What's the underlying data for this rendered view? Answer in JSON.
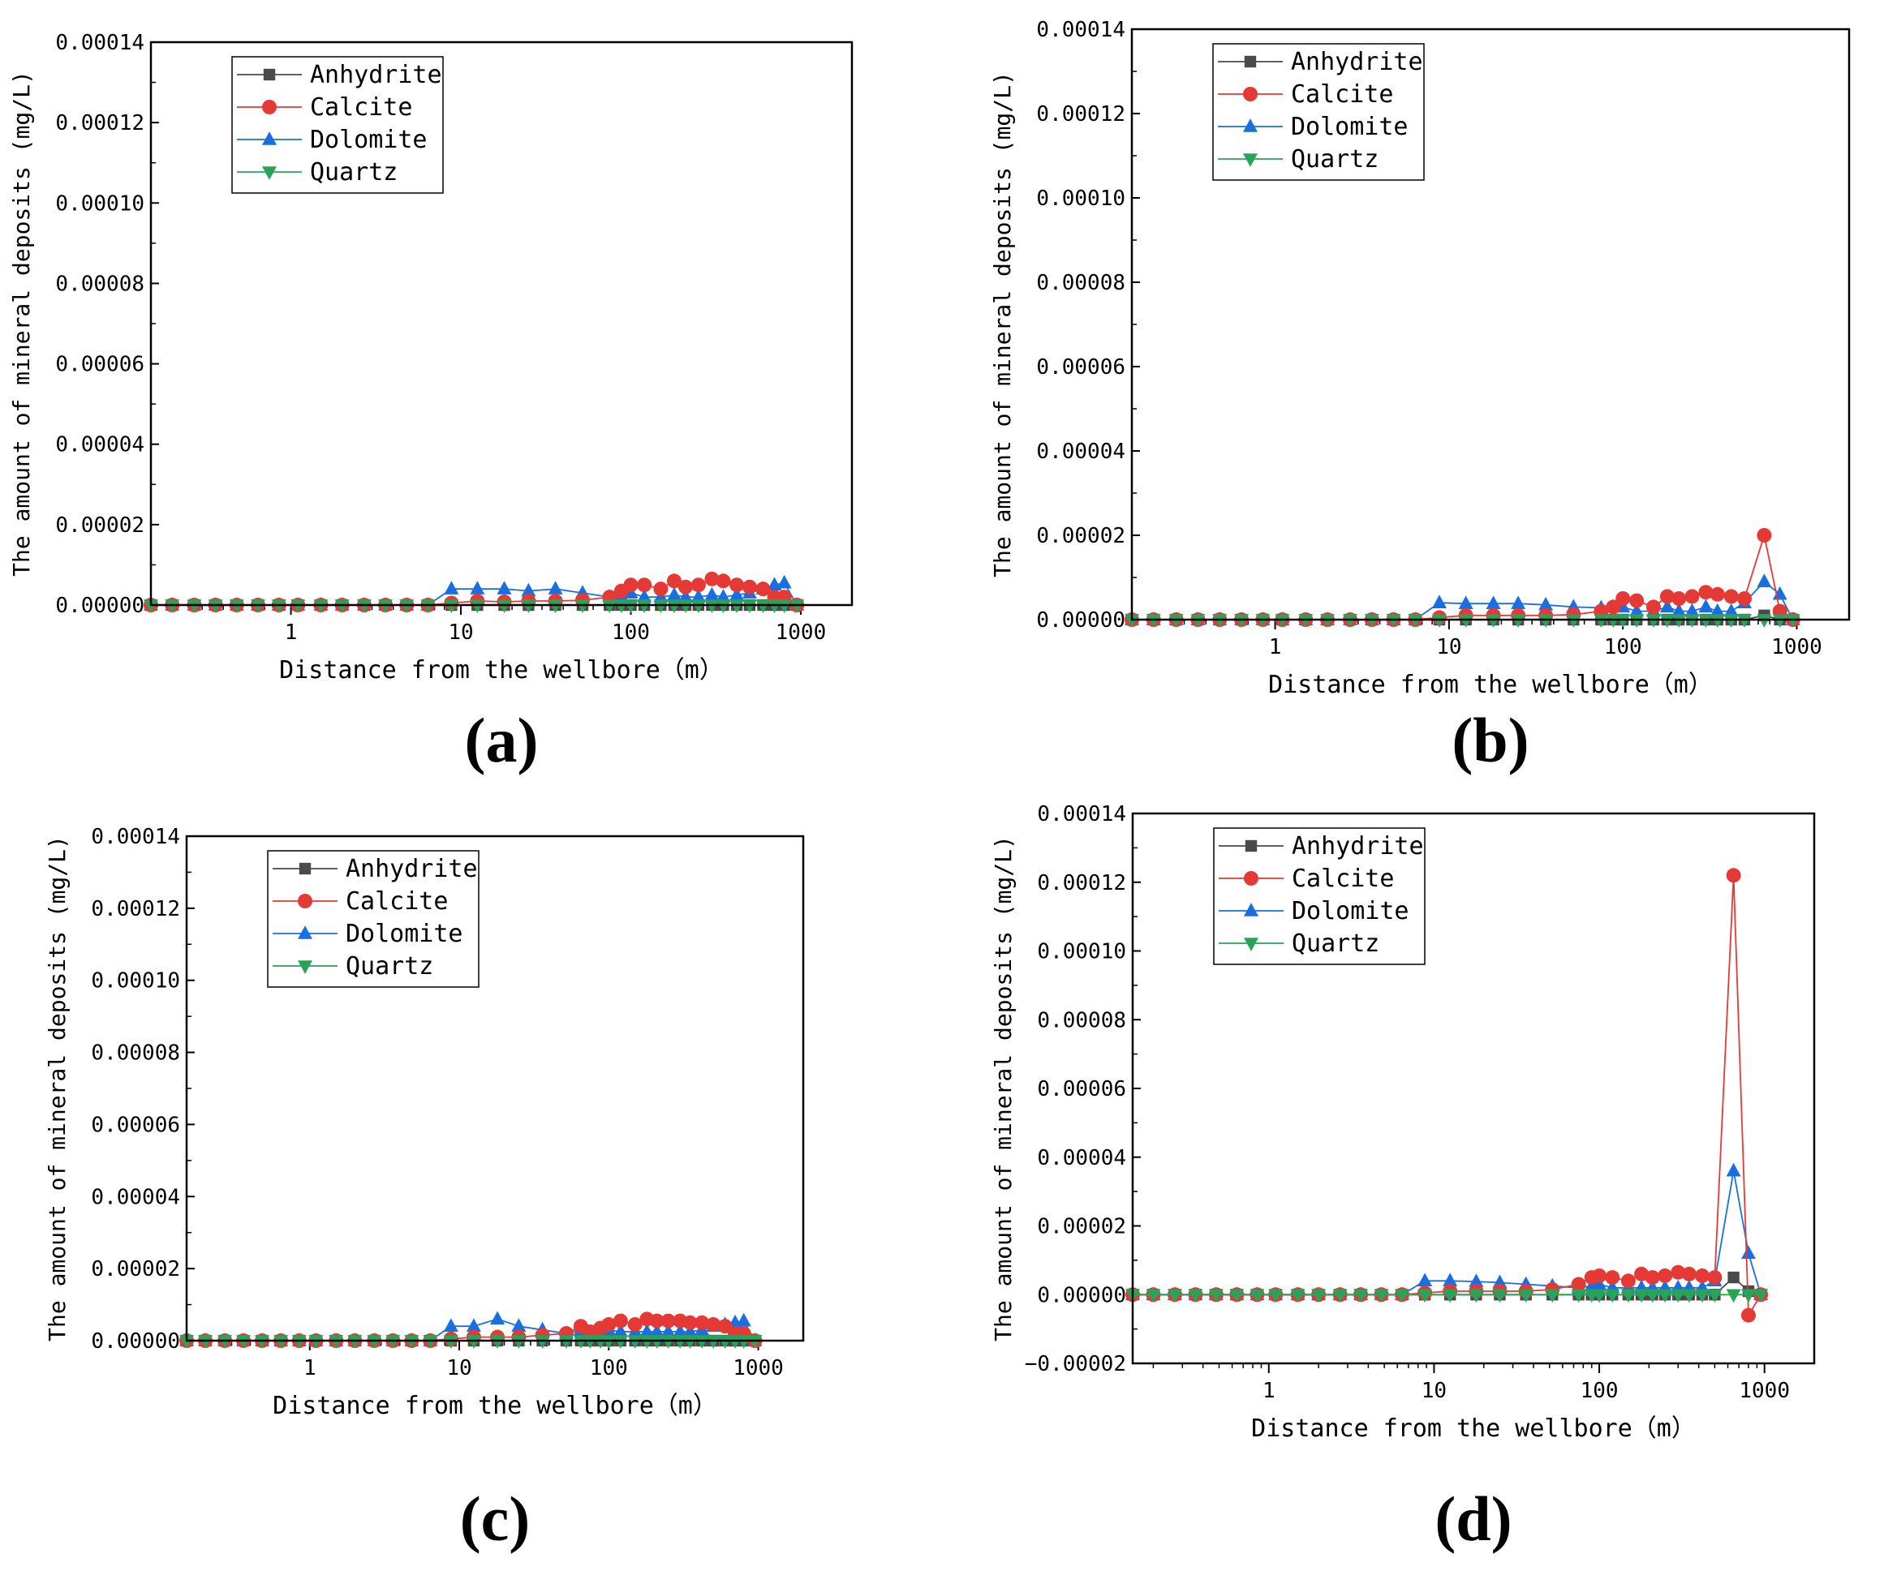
{
  "colors": {
    "Anhydrite": "#4a4a4a",
    "Calcite": "#e53935",
    "Dolomite": "#1a6fe0",
    "Quartz": "#2aa35a",
    "axis": "#000000"
  },
  "chart_data": [
    {
      "type": "line",
      "panel_label": "(a)",
      "xlabel": "Distance from the wellbore（m）",
      "ylabel": "The amount of mineral deposits (mg/L)",
      "xscale": "log",
      "xlim": [
        0.15,
        2000
      ],
      "ylim": [
        0,
        0.00014
      ],
      "xticks": [
        1,
        10,
        100,
        1000
      ],
      "xtick_labels": [
        "1",
        "10",
        "100",
        "1000"
      ],
      "yticks": [
        0,
        2e-05,
        4e-05,
        6e-05,
        8e-05,
        0.0001,
        0.00012,
        0.00014
      ],
      "ytick_labels": [
        "0.00000",
        "0.00002",
        "0.00004",
        "0.00006",
        "0.00008",
        "0.00010",
        "0.00012",
        "0.00014"
      ],
      "legend": [
        "Anhydrite",
        "Calcite",
        "Dolomite",
        "Quartz"
      ],
      "legend_position": "top-left",
      "x": [
        0.15,
        0.2,
        0.27,
        0.36,
        0.48,
        0.64,
        0.85,
        1.1,
        1.5,
        2.0,
        2.7,
        3.6,
        4.8,
        6.4,
        8.8,
        12.5,
        18,
        25,
        36,
        52,
        75,
        88,
        100,
        120,
        150,
        180,
        210,
        250,
        300,
        350,
        420,
        500,
        600,
        700,
        800,
        950
      ],
      "series": [
        {
          "name": "Anhydrite",
          "values": [
            0,
            0,
            0,
            0,
            0,
            0,
            0,
            0,
            0,
            0,
            0,
            0,
            0,
            0,
            0,
            0,
            0,
            0,
            0,
            0,
            0,
            0,
            0,
            0,
            0,
            0,
            0,
            0,
            0,
            0,
            0,
            0,
            0,
            0,
            0,
            0
          ]
        },
        {
          "name": "Calcite",
          "values": [
            0,
            0,
            0,
            0,
            0,
            0,
            0,
            0,
            0,
            0,
            0,
            0,
            0,
            0,
            5e-07,
            1e-06,
            8e-07,
            1e-06,
            1e-06,
            1.2e-06,
            2e-06,
            3.5e-06,
            5e-06,
            5e-06,
            4e-06,
            6e-06,
            4.5e-06,
            5e-06,
            6.5e-06,
            6e-06,
            5e-06,
            4.5e-06,
            4e-06,
            2e-06,
            2e-06,
            0
          ]
        },
        {
          "name": "Dolomite",
          "values": [
            0,
            0,
            0,
            0,
            0,
            0,
            0,
            0,
            0,
            0,
            0,
            0,
            0,
            0,
            4e-06,
            4e-06,
            4e-06,
            3.5e-06,
            4e-06,
            3e-06,
            2e-06,
            2e-06,
            3e-06,
            2e-06,
            2e-06,
            2.5e-06,
            2e-06,
            2e-06,
            2.5e-06,
            2e-06,
            2.5e-06,
            3e-06,
            4e-06,
            5e-06,
            5.5e-06,
            0
          ]
        },
        {
          "name": "Quartz",
          "values": [
            0,
            0,
            0,
            0,
            0,
            0,
            0,
            0,
            0,
            0,
            0,
            0,
            0,
            0,
            0,
            0,
            0,
            0,
            0,
            0,
            0,
            0,
            0,
            0,
            0,
            0,
            0,
            0,
            0,
            0,
            0,
            0,
            0,
            0,
            0,
            0
          ]
        }
      ]
    },
    {
      "type": "line",
      "panel_label": "(b)",
      "xlabel": "Distance from the wellbore（m）",
      "ylabel": "The amount of mineral deposits (mg/L)",
      "xscale": "log",
      "xlim": [
        0.15,
        2000
      ],
      "ylim": [
        0,
        0.00014
      ],
      "xticks": [
        1,
        10,
        100,
        1000
      ],
      "xtick_labels": [
        "1",
        "10",
        "100",
        "1000"
      ],
      "yticks": [
        0,
        2e-05,
        4e-05,
        6e-05,
        8e-05,
        0.0001,
        0.00012,
        0.00014
      ],
      "ytick_labels": [
        "0.00000",
        "0.00002",
        "0.00004",
        "0.00006",
        "0.00008",
        "0.00010",
        "0.00012",
        "0.00014"
      ],
      "legend": [
        "Anhydrite",
        "Calcite",
        "Dolomite",
        "Quartz"
      ],
      "legend_position": "top-left",
      "x": [
        0.15,
        0.2,
        0.27,
        0.36,
        0.48,
        0.64,
        0.85,
        1.1,
        1.5,
        2.0,
        2.7,
        3.6,
        4.8,
        6.4,
        8.8,
        12.5,
        18,
        25,
        36,
        52,
        75,
        88,
        100,
        120,
        150,
        180,
        210,
        250,
        300,
        350,
        420,
        500,
        650,
        800,
        950
      ],
      "series": [
        {
          "name": "Anhydrite",
          "values": [
            0,
            0,
            0,
            0,
            0,
            0,
            0,
            0,
            0,
            0,
            0,
            0,
            0,
            0,
            0,
            0,
            0,
            0,
            0,
            0,
            0,
            0,
            0,
            0,
            0,
            0,
            0,
            0,
            0,
            0,
            0,
            0,
            1e-06,
            0,
            0
          ]
        },
        {
          "name": "Calcite",
          "values": [
            0,
            0,
            0,
            0,
            0,
            0,
            0,
            0,
            0,
            0,
            0,
            0,
            0,
            0,
            5e-07,
            1e-06,
            1e-06,
            1e-06,
            1e-06,
            1.2e-06,
            2e-06,
            3e-06,
            5e-06,
            4.5e-06,
            3e-06,
            5.5e-06,
            5e-06,
            5.5e-06,
            6.5e-06,
            6e-06,
            5.5e-06,
            5e-06,
            2e-05,
            2e-06,
            0
          ]
        },
        {
          "name": "Dolomite",
          "values": [
            0,
            0,
            0,
            0,
            0,
            0,
            0,
            0,
            0,
            0,
            0,
            0,
            0,
            0,
            4e-06,
            3.8e-06,
            3.8e-06,
            3.8e-06,
            3.5e-06,
            3e-06,
            2.8e-06,
            3e-06,
            3e-06,
            2e-06,
            2e-06,
            3e-06,
            2e-06,
            2e-06,
            3e-06,
            2e-06,
            2e-06,
            4e-06,
            9e-06,
            6e-06,
            0
          ]
        },
        {
          "name": "Quartz",
          "values": [
            0,
            0,
            0,
            0,
            0,
            0,
            0,
            0,
            0,
            0,
            0,
            0,
            0,
            0,
            0,
            0,
            0,
            0,
            0,
            0,
            0,
            0,
            0,
            0,
            0,
            0,
            0,
            0,
            0,
            0,
            0,
            0,
            0,
            0,
            0
          ]
        }
      ]
    },
    {
      "type": "line",
      "panel_label": "(c)",
      "xlabel": "Distance from the wellbore（m）",
      "ylabel": "The amount of mineral deposits (mg/L)",
      "xscale": "log",
      "xlim": [
        0.15,
        2000
      ],
      "ylim": [
        0,
        0.00014
      ],
      "xticks": [
        1,
        10,
        100,
        1000
      ],
      "xtick_labels": [
        "1",
        "10",
        "100",
        "1000"
      ],
      "yticks": [
        0,
        2e-05,
        4e-05,
        6e-05,
        8e-05,
        0.0001,
        0.00012,
        0.00014
      ],
      "ytick_labels": [
        "0.00000",
        "0.00002",
        "0.00004",
        "0.00006",
        "0.00008",
        "0.00010",
        "0.00012",
        "0.00014"
      ],
      "legend": [
        "Anhydrite",
        "Calcite",
        "Dolomite",
        "Quartz"
      ],
      "legend_position": "top-left",
      "x": [
        0.15,
        0.2,
        0.27,
        0.36,
        0.48,
        0.64,
        0.85,
        1.1,
        1.5,
        2.0,
        2.7,
        3.6,
        4.8,
        6.4,
        8.8,
        12.5,
        18,
        25,
        36,
        52,
        65,
        75,
        88,
        100,
        120,
        150,
        180,
        210,
        250,
        300,
        350,
        420,
        500,
        600,
        700,
        800,
        950
      ],
      "series": [
        {
          "name": "Anhydrite",
          "values": [
            0,
            0,
            0,
            0,
            0,
            0,
            0,
            0,
            0,
            0,
            0,
            0,
            0,
            0,
            0,
            0,
            0,
            0,
            0,
            0,
            0,
            0,
            0,
            0,
            0,
            0,
            0,
            0,
            0,
            0,
            0,
            0,
            0,
            0,
            0,
            0,
            0
          ]
        },
        {
          "name": "Calcite",
          "values": [
            0,
            0,
            0,
            0,
            0,
            0,
            0,
            0,
            0,
            0,
            0,
            0,
            0,
            0,
            5e-07,
            1e-06,
            1e-06,
            1e-06,
            1.5e-06,
            2e-06,
            4e-06,
            2.5e-06,
            3.5e-06,
            4.5e-06,
            5.5e-06,
            4.5e-06,
            6e-06,
            5.5e-06,
            5.5e-06,
            5.5e-06,
            5e-06,
            5e-06,
            4.5e-06,
            4e-06,
            2e-06,
            2e-06,
            0
          ]
        },
        {
          "name": "Dolomite",
          "values": [
            0,
            0,
            0,
            0,
            0,
            0,
            0,
            0,
            0,
            0,
            0,
            0,
            0,
            0,
            4e-06,
            4e-06,
            6e-06,
            4e-06,
            3e-06,
            2e-06,
            3e-06,
            2e-06,
            3e-06,
            3e-06,
            2.5e-06,
            2.5e-06,
            2.5e-06,
            2.5e-06,
            2.5e-06,
            2.5e-06,
            2.5e-06,
            3e-06,
            4e-06,
            4.5e-06,
            5e-06,
            5.5e-06,
            0
          ]
        },
        {
          "name": "Quartz",
          "values": [
            0,
            0,
            0,
            0,
            0,
            0,
            0,
            0,
            0,
            0,
            0,
            0,
            0,
            0,
            0,
            0,
            0,
            0,
            0,
            0,
            0,
            0,
            0,
            0,
            0,
            0,
            0,
            0,
            0,
            0,
            0,
            0,
            0,
            0,
            0,
            0,
            0
          ]
        }
      ]
    },
    {
      "type": "line",
      "panel_label": "(d)",
      "xlabel": "Distance from the wellbore（m）",
      "ylabel": "The amount of mineral deposits (mg/L)",
      "xscale": "log",
      "xlim": [
        0.15,
        2000
      ],
      "ylim": [
        -2e-05,
        0.00014
      ],
      "xticks": [
        1,
        10,
        100,
        1000
      ],
      "xtick_labels": [
        "1",
        "10",
        "100",
        "1000"
      ],
      "yticks": [
        -2e-05,
        0,
        2e-05,
        4e-05,
        6e-05,
        8e-05,
        0.0001,
        0.00012,
        0.00014
      ],
      "ytick_labels": [
        "−0.00002",
        "0.00000",
        "0.00002",
        "0.00004",
        "0.00006",
        "0.00008",
        "0.00010",
        "0.00012",
        "0.00014"
      ],
      "legend": [
        "Anhydrite",
        "Calcite",
        "Dolomite",
        "Quartz"
      ],
      "legend_position": "top-left",
      "x": [
        0.15,
        0.2,
        0.27,
        0.36,
        0.48,
        0.64,
        0.85,
        1.1,
        1.5,
        2.0,
        2.7,
        3.6,
        4.8,
        6.4,
        8.8,
        12.5,
        18,
        25,
        36,
        52,
        75,
        90,
        100,
        120,
        150,
        180,
        210,
        250,
        300,
        350,
        420,
        500,
        650,
        800,
        950
      ],
      "series": [
        {
          "name": "Anhydrite",
          "values": [
            0,
            0,
            0,
            0,
            0,
            0,
            0,
            0,
            0,
            0,
            0,
            0,
            0,
            0,
            0,
            0,
            0,
            0,
            0,
            0,
            0,
            0,
            0,
            0,
            0,
            0,
            0,
            0,
            0,
            0,
            0,
            0,
            5e-06,
            1e-06,
            0
          ]
        },
        {
          "name": "Calcite",
          "values": [
            0,
            0,
            0,
            0,
            0,
            0,
            0,
            0,
            0,
            0,
            0,
            0,
            0,
            0,
            5e-07,
            1e-06,
            1e-06,
            1e-06,
            1e-06,
            1.5e-06,
            3e-06,
            5e-06,
            5.5e-06,
            5e-06,
            4e-06,
            6e-06,
            5e-06,
            5.5e-06,
            6.5e-06,
            6e-06,
            5.5e-06,
            5e-06,
            0.000122,
            -6e-06,
            0
          ]
        },
        {
          "name": "Dolomite",
          "values": [
            0,
            0,
            0,
            0,
            0,
            0,
            0,
            0,
            0,
            0,
            0,
            0,
            0,
            0,
            4e-06,
            4e-06,
            3.8e-06,
            3.5e-06,
            3e-06,
            2.5e-06,
            2e-06,
            2.5e-06,
            3e-06,
            2e-06,
            2e-06,
            2e-06,
            2e-06,
            2e-06,
            2e-06,
            2e-06,
            2e-06,
            4e-06,
            3.6e-05,
            1.2e-05,
            0
          ]
        },
        {
          "name": "Quartz",
          "values": [
            0,
            0,
            0,
            0,
            0,
            0,
            0,
            0,
            0,
            0,
            0,
            0,
            0,
            0,
            0,
            0,
            0,
            0,
            0,
            0,
            0,
            0,
            0,
            0,
            0,
            0,
            0,
            0,
            0,
            0,
            0,
            0,
            0,
            0,
            0
          ]
        }
      ]
    }
  ]
}
